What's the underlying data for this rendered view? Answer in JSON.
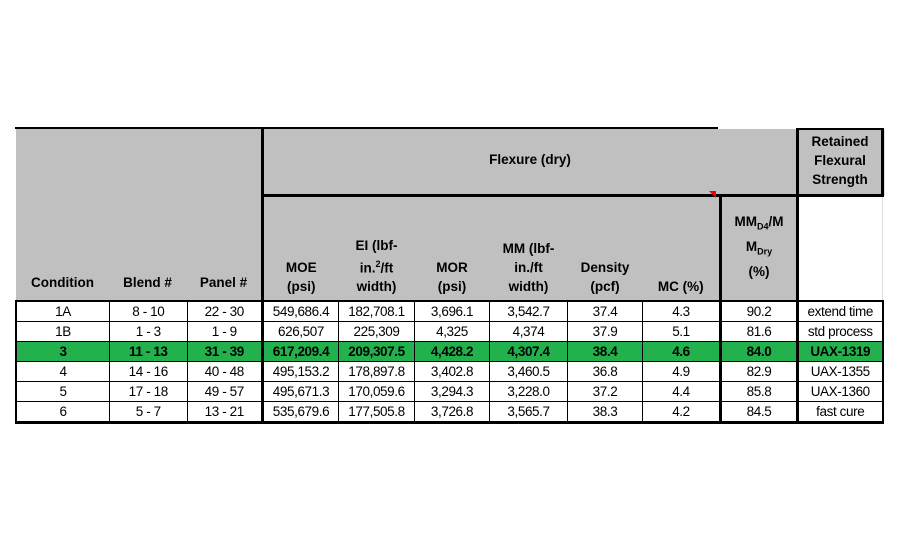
{
  "header": {
    "group_flexure": "Flexure (dry)",
    "group_retained": [
      "Retained",
      "Flexural",
      "Strength"
    ],
    "columns": {
      "condition": "Condition",
      "blend": "Blend #",
      "panel": "Panel #",
      "moe": [
        "MOE",
        "(psi)"
      ],
      "ei": [
        "EI (lbf-",
        "in.",
        "2",
        "/ft",
        "width)"
      ],
      "mor": [
        "MOR",
        "(psi)"
      ],
      "mm": [
        "MM (lbf-",
        "in./ft",
        "width)"
      ],
      "density": [
        "Density",
        "(pcf)"
      ],
      "mc": "MC (%)",
      "ratio": [
        "MM",
        "D4",
        "/M",
        "M",
        "Dry",
        "(%)"
      ]
    }
  },
  "rows": [
    {
      "condition": "1A",
      "blend": "8 - 10",
      "panel": "22 - 30",
      "moe": "549,686.4",
      "ei": "182,708.1",
      "mor": "3,696.1",
      "mm": "3,542.7",
      "density": "37.4",
      "mc": "4.3",
      "ratio": "90.2",
      "note": "extend time",
      "highlight": false
    },
    {
      "condition": "1B",
      "blend": "1 - 3",
      "panel": "1 - 9",
      "moe": "626,507",
      "ei": "225,309",
      "mor": "4,325",
      "mm": "4,374",
      "density": "37.9",
      "mc": "5.1",
      "ratio": "81.6",
      "note": "std process",
      "highlight": false
    },
    {
      "condition": "3",
      "blend": "11 - 13",
      "panel": "31 - 39",
      "moe": "617,209.4",
      "ei": "209,307.5",
      "mor": "4,428.2",
      "mm": "4,307.4",
      "density": "38.4",
      "mc": "4.6",
      "ratio": "84.0",
      "note": "UAX-1319",
      "highlight": true
    },
    {
      "condition": "4",
      "blend": "14 - 16",
      "panel": "40 - 48",
      "moe": "495,153.2",
      "ei": "178,897.8",
      "mor": "3,402.8",
      "mm": "3,460.5",
      "density": "36.8",
      "mc": "4.9",
      "ratio": "82.9",
      "note": "UAX-1355",
      "highlight": false
    },
    {
      "condition": "5",
      "blend": "17 - 18",
      "panel": "49 - 57",
      "moe": "495,671.3",
      "ei": "170,059.6",
      "mor": "3,294.3",
      "mm": "3,228.0",
      "density": "37.2",
      "mc": "4.4",
      "ratio": "85.8",
      "note": "UAX-1360",
      "highlight": false
    },
    {
      "condition": "6",
      "blend": "5 - 7",
      "panel": "13 - 21",
      "moe": "535,679.6",
      "ei": "177,505.8",
      "mor": "3,726.8",
      "mm": "3,565.7",
      "density": "38.3",
      "mc": "4.2",
      "ratio": "84.5",
      "note": "fast cure",
      "highlight": false
    }
  ],
  "colors": {
    "highlight": "#22b14c",
    "header_bg": "#c0c0c0",
    "comment_marker": "#e00000"
  }
}
